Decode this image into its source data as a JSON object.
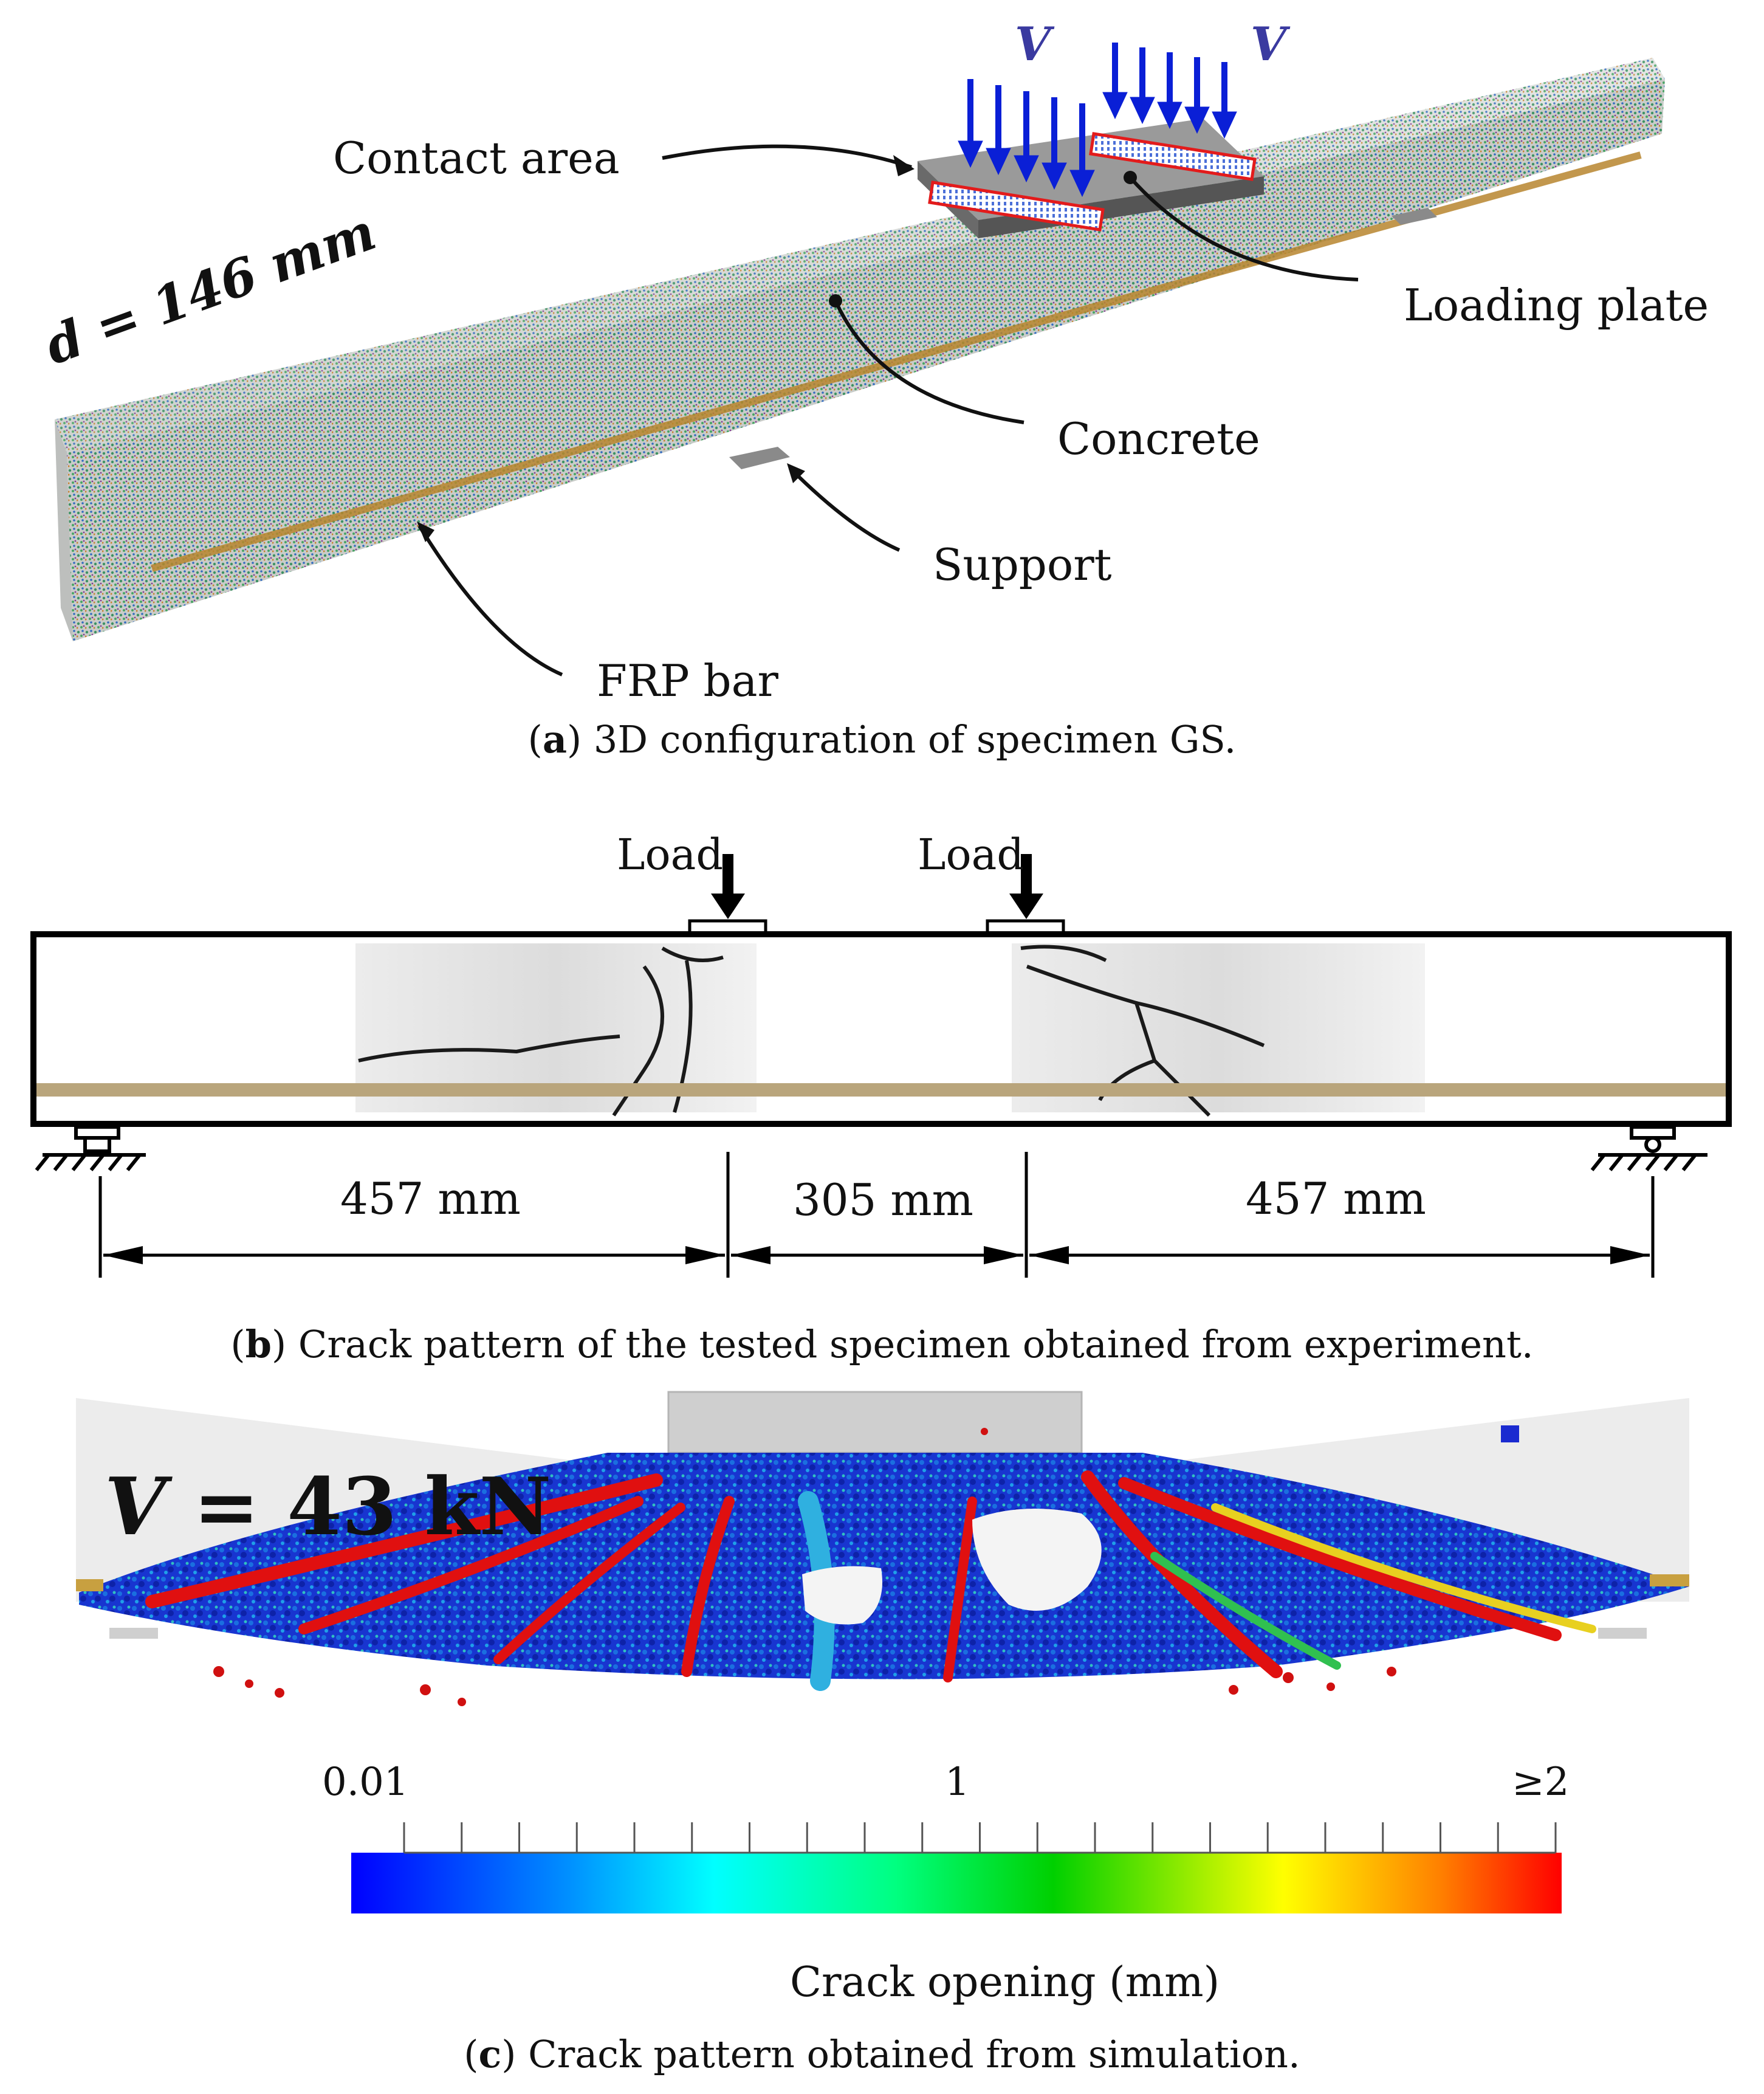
{
  "panel_a": {
    "load_symbol_left": "V",
    "load_symbol_right": "V",
    "dimension_label": "d = 146 mm",
    "callouts": {
      "contact_area": "Contact area",
      "loading_plate": "Loading plate",
      "concrete": "Concrete",
      "support": "Support",
      "frp_bar": "FRP bar"
    },
    "caption_letter": "a",
    "caption_text": "3D configuration of specimen GS."
  },
  "panel_b": {
    "load_label_left": "Load",
    "load_label_right": "Load",
    "dims": [
      "457 mm",
      "305 mm",
      "457 mm"
    ],
    "caption_letter": "b",
    "caption_text": "Crack pattern of the tested specimen obtained from experiment."
  },
  "panel_c": {
    "load_symbol": "V",
    "load_value": "= 43 kN",
    "colorbar": {
      "min_label": "0.01",
      "mid_label": "1",
      "max_label": "≥2",
      "title": "Crack opening (mm)",
      "tick_count": 21,
      "colors": [
        "#0000ff",
        "#00c8ff",
        "#00ffb0",
        "#00e000",
        "#ffff00",
        "#ff9000",
        "#ff0000"
      ]
    },
    "caption_letter": "c",
    "caption_text": "Crack pattern obtained from simulation."
  },
  "colors": {
    "arrow_blue": "#0a1fd6",
    "frp_bar": "#b9a57c",
    "crack_red": "#e01010",
    "concrete_grey": "#d7d7d7"
  }
}
